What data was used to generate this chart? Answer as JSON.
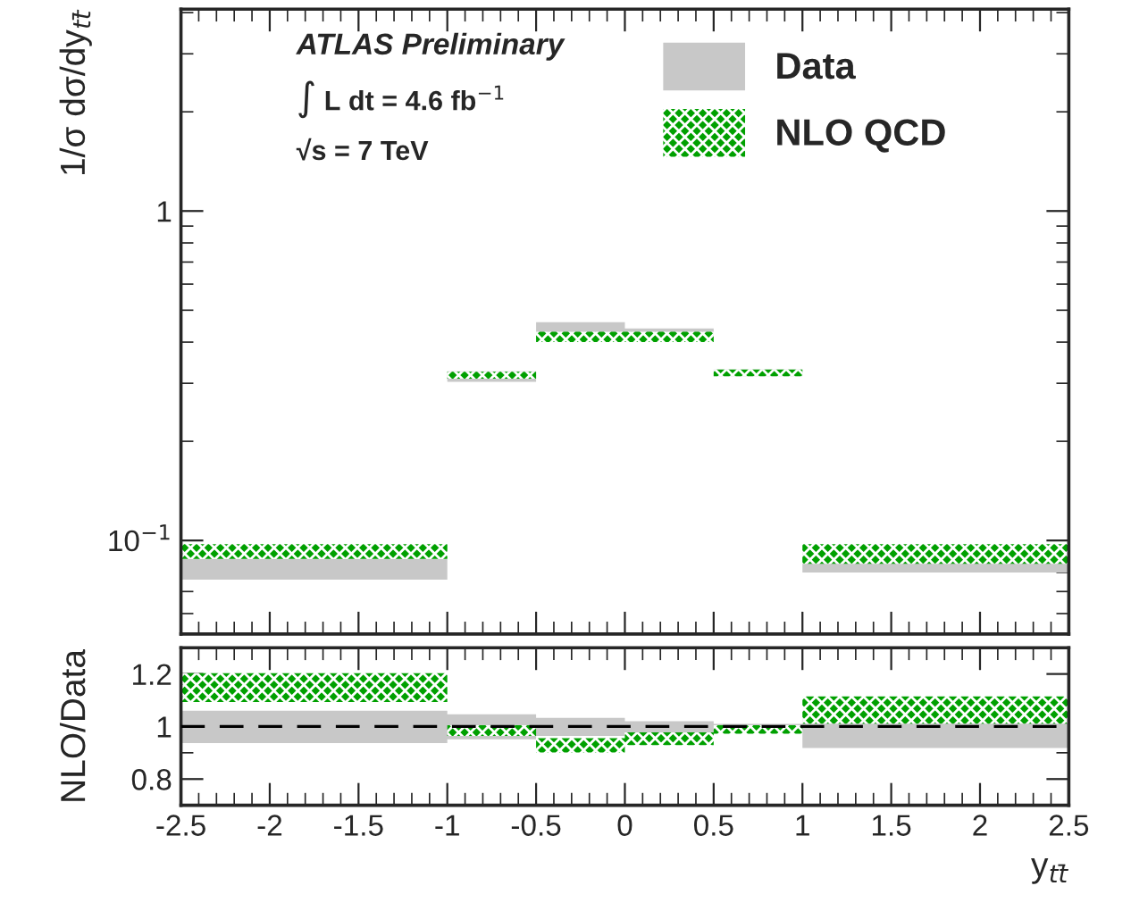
{
  "chart_data": [
    {
      "type": "step",
      "ylabel": "1/σ dσ/dy$_{tt̄}$",
      "log": "y",
      "ylim": [
        0.052,
        4.1
      ],
      "yticks": [
        {
          "value": 0.1,
          "label": "10$^{−1}$"
        },
        1
      ],
      "xlim": [
        -2.5,
        2.5
      ],
      "xticks": [
        -2.5,
        -2,
        -1.5,
        -1,
        -0.5,
        0,
        0.5,
        1,
        1.5,
        2,
        2.5
      ],
      "tick_labels": "y",
      "legend": "top right",
      "annotations": [
        "ATLAS Preliminary",
        "∫ L dt = 4.6 fb$^{−1}$",
        "√s = 7 TeV"
      ],
      "x": [
        -2.5,
        -1,
        -0.5,
        0,
        0.5,
        1,
        2.5
      ],
      "series": [
        {
          "name": "Data",
          "color": "#c8c8c8",
          "values": [
            null,
            null,
            null,
            null,
            null,
            null,
            null
          ],
          "lower": [
            0.076,
            0.303,
            0.41,
            0.41,
            0.315,
            0.08,
            0.08
          ],
          "upper": [
            0.088,
            0.326,
            0.46,
            0.44,
            0.33,
            0.094,
            0.094
          ]
        },
        {
          "name": "NLO QCD",
          "color": "#00a000",
          "values": [
            null,
            null,
            null,
            null,
            null,
            null,
            null
          ],
          "lower": [
            0.088,
            0.31,
            0.4,
            0.4,
            0.315,
            0.085,
            0.085
          ],
          "upper": [
            0.0975,
            0.325,
            0.43,
            0.43,
            0.33,
            0.0975,
            0.0975
          ]
        }
      ]
    },
    {
      "type": "step",
      "ylabel": "NLO/Data",
      "xlabel": "y$_{tt̄}$",
      "ylim": [
        0.7,
        1.3
      ],
      "yticks": [
        0.8,
        1,
        1.2
      ],
      "xlim": [
        -2.5,
        2.5
      ],
      "xticks": [
        -2.5,
        -2,
        -1.5,
        -1,
        -0.5,
        0,
        0.5,
        1,
        1.5,
        2,
        2.5
      ],
      "x": [
        -2.5,
        -1,
        -0.5,
        0,
        0.5,
        1,
        2.5
      ],
      "ref_lines": [
        {
          "axis": "y",
          "value": 1,
          "line_style": "dashed",
          "color": "#000000"
        }
      ],
      "series": [
        {
          "color": "#c8c8c8",
          "values": [
            null,
            null,
            null,
            null,
            null,
            null,
            null
          ],
          "lower": [
            0.937,
            0.951,
            0.964,
            0.978,
            0.984,
            0.918,
            0.918
          ],
          "upper": [
            1.06,
            1.047,
            1.033,
            1.02,
            1.01,
            1.033,
            1.033
          ]
        },
        {
          "color": "#00a000",
          "values": [
            null,
            null,
            null,
            null,
            null,
            null,
            null
          ],
          "lower": [
            1.093,
            0.964,
            0.901,
            0.929,
            0.973,
            1.011,
            1.011
          ],
          "upper": [
            1.203,
            1.005,
            0.956,
            0.978,
            1.005,
            1.115,
            1.115
          ]
        }
      ]
    }
  ]
}
